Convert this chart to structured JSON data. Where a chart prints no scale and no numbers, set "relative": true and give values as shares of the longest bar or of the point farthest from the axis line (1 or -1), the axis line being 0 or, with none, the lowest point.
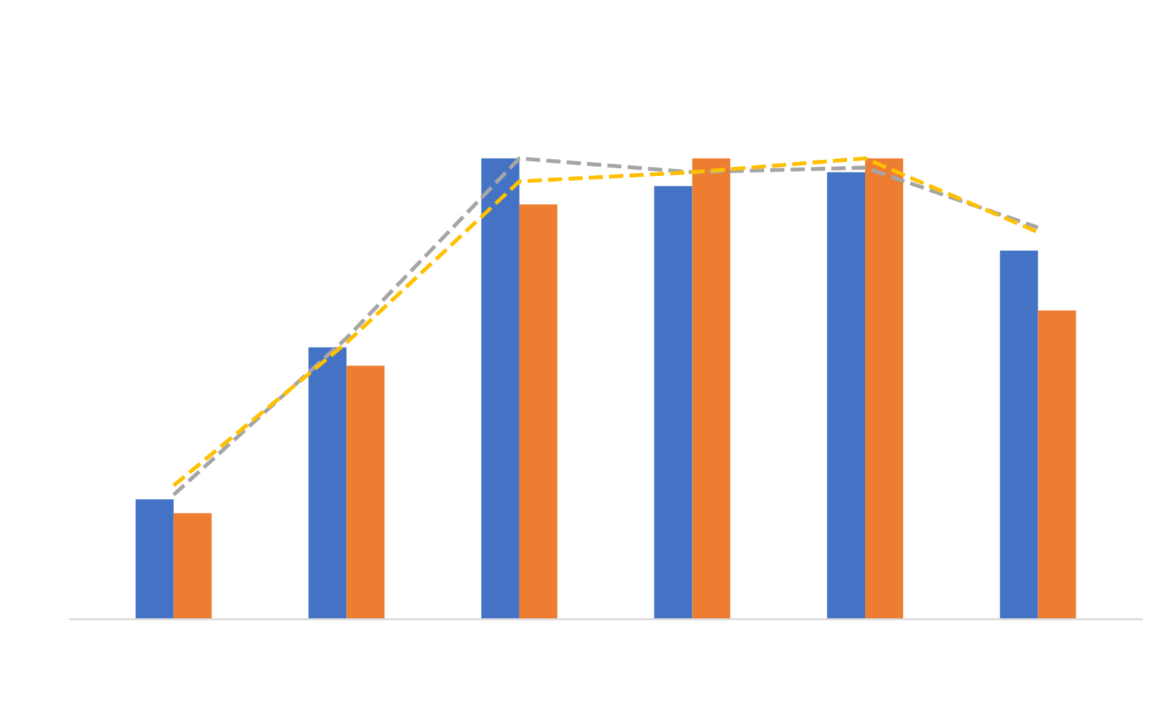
{
  "chart_data": [
    {
      "type": "bar",
      "relative": true,
      "categories": [
        null,
        null,
        null,
        null,
        null,
        null
      ],
      "series": [
        {
          "color": "#4472c4",
          "values": [
            0.26,
            0.59,
            1.0,
            0.94,
            0.97,
            0.8
          ]
        },
        {
          "color": "#ed7d31",
          "values": [
            0.23,
            0.55,
            0.9,
            1.0,
            1.0,
            0.67
          ]
        }
      ]
    },
    {
      "type": "line",
      "relative": true,
      "categories": [
        null,
        null,
        null,
        null,
        null,
        null
      ],
      "line_style": "dashed",
      "series": [
        {
          "color": "#a5a5a5",
          "values": [
            0.27,
            0.61,
            1.0,
            0.97,
            0.98,
            0.85
          ]
        },
        {
          "color": "#ffc000",
          "values": [
            0.29,
            0.6,
            0.95,
            0.97,
            1.0,
            0.84
          ]
        }
      ]
    }
  ]
}
